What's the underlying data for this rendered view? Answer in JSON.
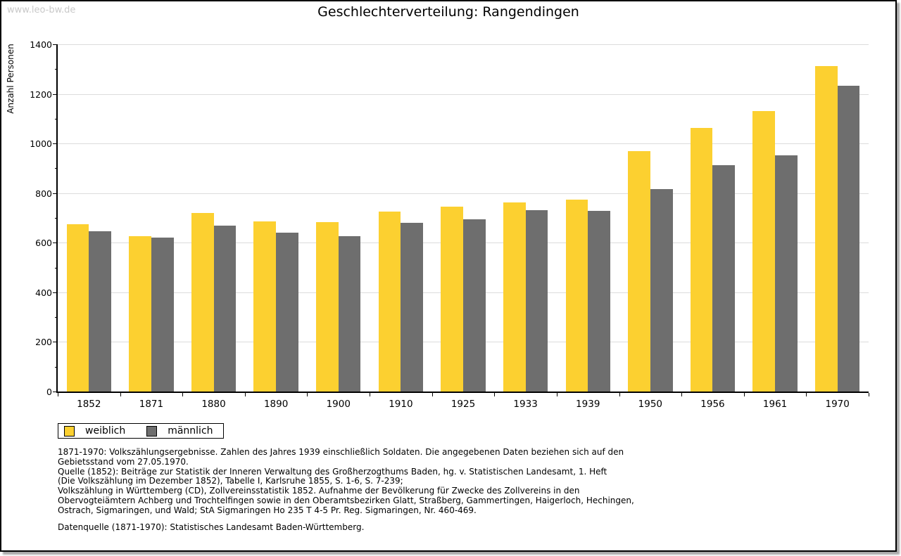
{
  "watermark": "www.leo-bw.de",
  "title": "Geschlechterverteilung: Rangendingen",
  "chart_data": {
    "type": "bar",
    "title": "Geschlechterverteilung: Rangendingen",
    "xlabel": "",
    "ylabel": "Anzahl Personen",
    "ylim": [
      0,
      1400
    ],
    "ytick_step": 200,
    "yminor_step": 100,
    "grid": true,
    "legend_position": "bottom-left",
    "categories": [
      "1852",
      "1871",
      "1880",
      "1890",
      "1900",
      "1910",
      "1925",
      "1933",
      "1939",
      "1950",
      "1956",
      "1961",
      "1970"
    ],
    "series": [
      {
        "name": "weiblich",
        "color": "#fcd030",
        "values": [
          675,
          626,
          720,
          686,
          683,
          726,
          745,
          763,
          775,
          970,
          1062,
          1130,
          1313
        ]
      },
      {
        "name": "männlich",
        "color": "#6e6e6e",
        "values": [
          646,
          620,
          670,
          640,
          626,
          679,
          694,
          730,
          729,
          817,
          912,
          953,
          1233
        ]
      }
    ]
  },
  "footnotes": {
    "lines": [
      "1871-1970: Volkszählungsergebnisse. Zahlen des Jahres 1939 einschließlich Soldaten. Die angegebenen Daten beziehen sich auf den",
      "Gebietsstand vom 27.05.1970.",
      "Quelle (1852): Beiträge zur Statistik der Inneren Verwaltung des Großherzogthums Baden, hg. v. Statistischen Landesamt, 1. Heft",
      "(Die Volkszählung im Dezember 1852), Tabelle I, Karlsruhe 1855, S. 1-6, S. 7-239;",
      "Volkszählung in Württemberg (CD), Zollvereinsstatistik 1852. Aufnahme der Bevölkerung für Zwecke des Zollvereins in den",
      "Obervogteiämtern Achberg und Trochtelfingen sowie in den Oberamtsbezirken Glatt, Straßberg, Gammertingen, Haigerloch, Hechingen,",
      "Ostrach, Sigmaringen, und Wald; StA Sigmaringen Ho 235 T 4-5 Pr. Reg. Sigmaringen, Nr. 460-469."
    ],
    "source": "Datenquelle (1871-1970): Statistisches Landesamt Baden-Württemberg."
  },
  "colors": {
    "weiblich": "#fcd030",
    "maennlich": "#6e6e6e",
    "gridline": "#dcdcdc",
    "axis": "#000000",
    "watermark": "#c9c9c9",
    "frame_shadow": "#a9a9a9"
  }
}
